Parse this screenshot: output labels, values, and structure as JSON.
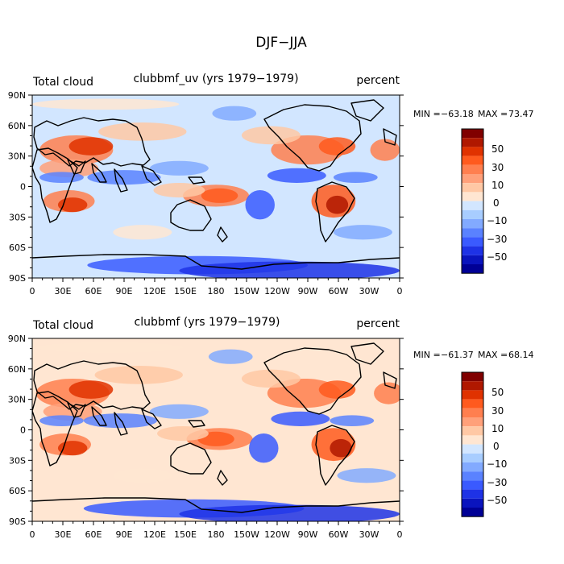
{
  "figure_title": "DJF−JJA",
  "chart_data": [
    {
      "type": "heatmap",
      "title": "clubbmf_uv (yrs 1979−1979)",
      "left_label": "Total cloud",
      "right_label": "percent",
      "stats": {
        "min_label": "MIN =",
        "min": "−63.18",
        "max_label": "MAX =",
        "max": "73.47"
      },
      "x_ticks": [
        "0",
        "30E",
        "60E",
        "90E",
        "120E",
        "150E",
        "180",
        "150W",
        "120W",
        "90W",
        "60W",
        "30W",
        "0"
      ],
      "y_ticks": [
        "90N",
        "60N",
        "30N",
        "0",
        "30S",
        "60S",
        "90S"
      ],
      "xlim": [
        0,
        360
      ],
      "ylim": [
        -90,
        90
      ],
      "colorbar_labels": [
        "50",
        "30",
        "10",
        "0",
        "−10",
        "−30",
        "−50"
      ]
    },
    {
      "type": "heatmap",
      "title": "clubbmf (yrs 1979−1979)",
      "left_label": "Total cloud",
      "right_label": "percent",
      "stats": {
        "min_label": "MIN =",
        "min": "−61.37",
        "max_label": "MAX =",
        "max": "68.14"
      },
      "x_ticks": [
        "0",
        "30E",
        "60E",
        "90E",
        "120E",
        "150E",
        "180",
        "150W",
        "120W",
        "90W",
        "60W",
        "30W",
        "0"
      ],
      "y_ticks": [
        "90N",
        "60N",
        "30N",
        "0",
        "30S",
        "60S",
        "90S"
      ],
      "xlim": [
        0,
        360
      ],
      "ylim": [
        -90,
        90
      ],
      "colorbar_labels": [
        "50",
        "30",
        "10",
        "0",
        "−10",
        "−30",
        "−50"
      ]
    }
  ],
  "colorbar_colors": [
    "#800000",
    "#b01800",
    "#e03200",
    "#ff5a1e",
    "#ff7f4f",
    "#ffa07a",
    "#ffc8a5",
    "#ffe6d2",
    "#d2e6ff",
    "#a8cdff",
    "#82aaff",
    "#5a82ff",
    "#3a5aff",
    "#1e32e6",
    "#0a14be",
    "#000096"
  ]
}
